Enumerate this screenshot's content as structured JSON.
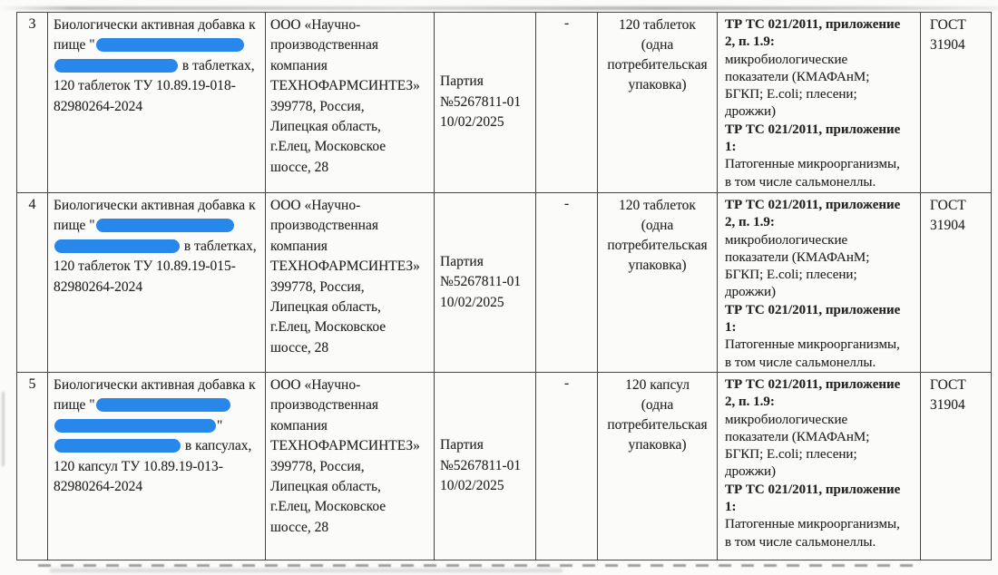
{
  "colors": {
    "page_bg": "#fbfbfa",
    "text": "#232323",
    "border": "#454545",
    "redaction": "#2787ea"
  },
  "table": {
    "rows": [
      {
        "num": "3",
        "product_lines": [
          {
            "text": "Биологически активная добавка к"
          },
          {
            "prefix": "пище \"",
            "bar": 163
          },
          {
            "bar": 136,
            "suffix": " в таблетках,"
          },
          {
            "text": "120 таблеток ТУ 10.89.19-018-"
          },
          {
            "text": "82980264-2024"
          }
        ],
        "manufacturer_lines": [
          "ООО «Научно-",
          "производственная",
          "компания",
          "ТЕХНОФАРМСИНТЕЗ»",
          "399778, Россия,",
          "Липецкая область,",
          "г.Елец, Московское",
          "шоссе, 28"
        ],
        "batch_lines": [
          "Партия",
          "№5267811-01",
          "10/02/2025"
        ],
        "dash": "-",
        "quantity_lines": [
          "120 таблеток",
          "(одна",
          "потребительская",
          "упаковка)"
        ],
        "requirement_lines": [
          {
            "text": "ТР ТС 021/2011, приложение",
            "bold": true
          },
          {
            "text": "2, п. 1.9:",
            "bold": true
          },
          {
            "text": "микробиологические",
            "bold": false
          },
          {
            "text": "показатели (КМАФАнМ;",
            "bold": false
          },
          {
            "text": "БГКП; E.coli; плесени;",
            "bold": false
          },
          {
            "text": "дрожжи)",
            "bold": false
          },
          {
            "text": "ТР ТС 021/2011, приложение",
            "bold": true
          },
          {
            "text": "1:",
            "bold": true
          },
          {
            "text": "Патогенные микроорганизмы,",
            "bold": false
          },
          {
            "text": "в том числе сальмонеллы.",
            "bold": false
          }
        ],
        "gost_lines": [
          "ГОСТ",
          "31904"
        ]
      },
      {
        "num": "4",
        "product_lines": [
          {
            "text": "Биологически активная добавка к"
          },
          {
            "prefix": "пище \"",
            "bar": 152
          },
          {
            "bar": 138,
            "suffix": " в таблетках,"
          },
          {
            "text": "120 таблеток ТУ 10.89.19-015-"
          },
          {
            "text": "82980264-2024"
          }
        ],
        "manufacturer_lines": [
          "ООО «Научно-",
          "производственная",
          "компания",
          "ТЕХНОФАРМСИНТЕЗ»",
          "399778, Россия,",
          "Липецкая область,",
          "г.Елец, Московское",
          "шоссе, 28"
        ],
        "batch_lines": [
          "Партия",
          "№5267811-01",
          "10/02/2025"
        ],
        "dash": "-",
        "quantity_lines": [
          "120 таблеток",
          "(одна",
          "потребительская",
          "упаковка)"
        ],
        "requirement_lines": [
          {
            "text": "ТР ТС 021/2011, приложение",
            "bold": true
          },
          {
            "text": "2, п. 1.9:",
            "bold": true
          },
          {
            "text": "микробиологические",
            "bold": false
          },
          {
            "text": "показатели (КМАФАнМ;",
            "bold": false
          },
          {
            "text": "БГКП; E.coli; плесени;",
            "bold": false
          },
          {
            "text": "дрожжи)",
            "bold": false
          },
          {
            "text": "ТР ТС 021/2011, приложение",
            "bold": true
          },
          {
            "text": "1:",
            "bold": true
          },
          {
            "text": "Патогенные микроорганизмы,",
            "bold": false
          },
          {
            "text": "в том числе сальмонеллы.",
            "bold": false
          }
        ],
        "gost_lines": [
          "ГОСТ",
          "31904"
        ]
      },
      {
        "num": "5",
        "product_lines": [
          {
            "text": "Биологически активная добавка к"
          },
          {
            "prefix": "пище \"",
            "bar": 148
          },
          {
            "bar": 178,
            "suffix": "\""
          },
          {
            "bar": 139,
            "suffix": " в капсулах,"
          },
          {
            "text": "120 капсул ТУ 10.89.19-013-"
          },
          {
            "text": "82980264-2024"
          }
        ],
        "manufacturer_lines": [
          "ООО «Научно-",
          "производственная",
          "компания",
          "ТЕХНОФАРМСИНТЕЗ»",
          "399778, Россия,",
          "Липецкая область,",
          "г.Елец, Московское",
          "шоссе, 28"
        ],
        "batch_lines": [
          "Партия",
          "№5267811-01",
          "10/02/2025"
        ],
        "dash": "-",
        "quantity_lines": [
          "120 капсул",
          "(одна",
          "потребительская",
          "упаковка)"
        ],
        "requirement_lines": [
          {
            "text": "ТР ТС 021/2011, приложение",
            "bold": true
          },
          {
            "text": "2, п. 1.9:",
            "bold": true
          },
          {
            "text": "микробиологические",
            "bold": false
          },
          {
            "text": "показатели (КМАФАнМ;",
            "bold": false
          },
          {
            "text": "БГКП; E.coli; плесени;",
            "bold": false
          },
          {
            "text": "дрожжи)",
            "bold": false
          },
          {
            "text": "ТР ТС 021/2011, приложение",
            "bold": true
          },
          {
            "text": "1:",
            "bold": true
          },
          {
            "text": "Патогенные микроорганизмы,",
            "bold": false
          },
          {
            "text": "в том числе сальмонеллы.",
            "bold": false
          }
        ],
        "gost_lines": [
          "ГОСТ",
          "31904"
        ]
      }
    ]
  }
}
